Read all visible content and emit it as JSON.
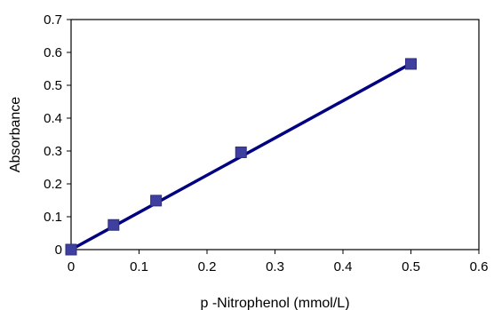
{
  "chart_data": {
    "type": "line",
    "title": "",
    "xlabel": "p -Nitrophenol (mmol/L)",
    "ylabel": "Absorbance",
    "xlim": [
      0,
      0.6
    ],
    "ylim": [
      0,
      0.7
    ],
    "x_ticks": [
      "0",
      "0.1",
      "0.2",
      "0.3",
      "0.4",
      "0.5",
      "0.6"
    ],
    "y_ticks": [
      "0",
      "0.1",
      "0.2",
      "0.3",
      "0.4",
      "0.5",
      "0.6",
      "0.7"
    ],
    "grid": false,
    "legend": false,
    "series": [
      {
        "marker": "square",
        "marker_color": "#3f3f9f",
        "points": [
          {
            "x": 0,
            "y": 0
          },
          {
            "x": 0.0625,
            "y": 0.075
          },
          {
            "x": 0.125,
            "y": 0.149
          },
          {
            "x": 0.25,
            "y": 0.296
          },
          {
            "x": 0.5,
            "y": 0.565
          }
        ]
      }
    ],
    "trendline": {
      "color": "#000080",
      "from": {
        "x": 0,
        "y": 0
      },
      "to": {
        "x": 0.5,
        "y": 0.566
      }
    }
  }
}
